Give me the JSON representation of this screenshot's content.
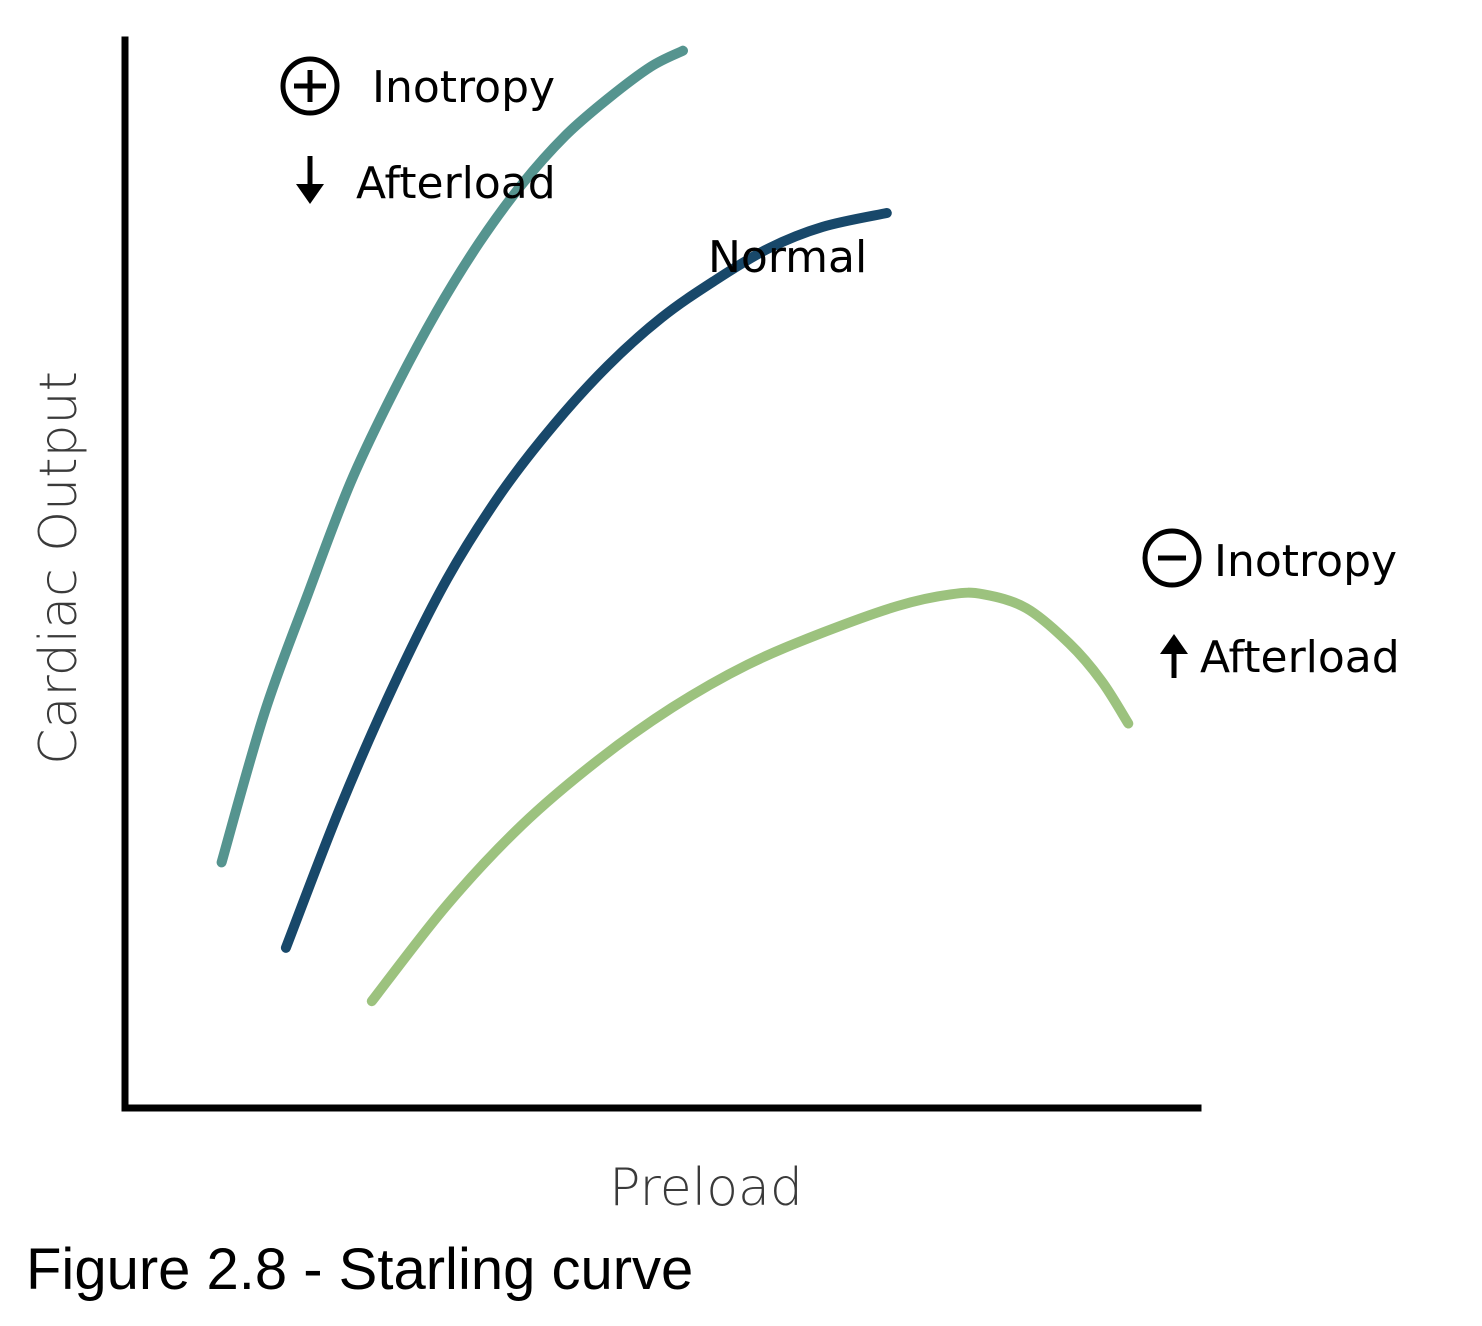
{
  "caption": "Figure 2.8 - Starling curve",
  "chart_data": {
    "type": "line",
    "title": "",
    "xlabel": "Preload",
    "ylabel": "Cardiac Output",
    "xlim": [
      0,
      100
    ],
    "ylim": [
      0,
      100
    ],
    "grid": false,
    "legend": "none",
    "series": [
      {
        "name": "Normal",
        "color": "#18486a",
        "x": [
          15,
          20,
          25,
          30,
          35,
          40,
          45,
          50,
          55,
          60,
          65,
          71
        ],
        "y": [
          15,
          28,
          39.5,
          49.5,
          57.5,
          64,
          69.5,
          74,
          77.5,
          80.5,
          82.5,
          83.8
        ]
      },
      {
        "name": "",
        "color": "#55948f",
        "x": [
          9,
          13,
          17,
          21,
          25,
          29,
          33,
          37,
          41,
          45,
          49,
          52
        ],
        "y": [
          23,
          37,
          48,
          58.5,
          67,
          74.5,
          81,
          86.5,
          91,
          94.5,
          97.5,
          99
        ]
      },
      {
        "name": "",
        "color": "#9cc27e",
        "x": [
          23,
          30,
          37,
          44,
          51,
          58,
          65,
          72,
          77,
          80,
          84,
          88,
          91,
          93.5
        ],
        "y": [
          10,
          19,
          26.5,
          32.5,
          37.5,
          41.5,
          44.5,
          47,
          48.1,
          48.1,
          46.8,
          43.5,
          40,
          36
        ]
      }
    ],
    "annotations": [
      {
        "symbol": "plus-circle",
        "text": "Inotropy"
      },
      {
        "symbol": "down-arrow",
        "text": "Afterload"
      },
      {
        "symbol": "minus-circle",
        "text": "Inotropy"
      },
      {
        "symbol": "up-arrow",
        "text": "Afterload"
      }
    ]
  }
}
